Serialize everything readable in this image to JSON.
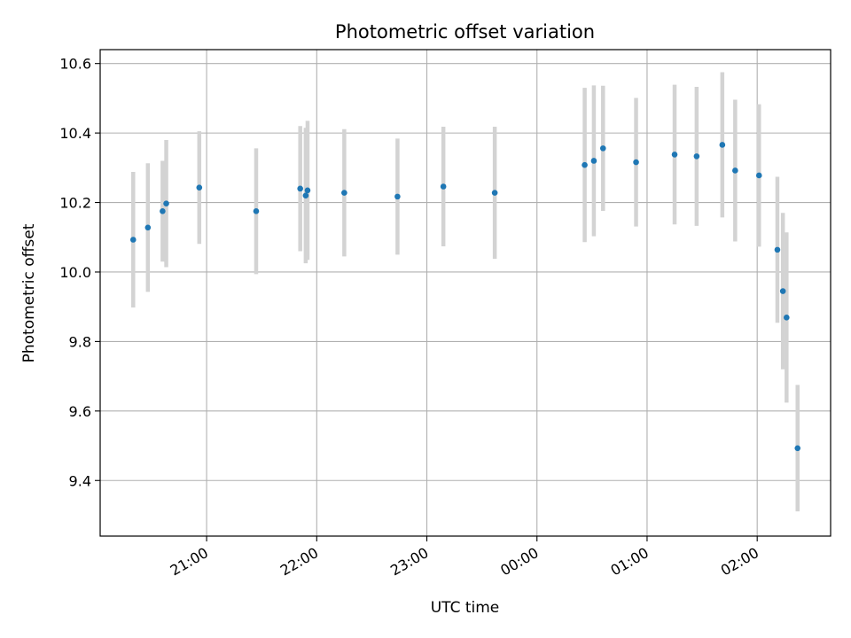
{
  "chart_data": {
    "type": "scatter",
    "title": "Photometric offset variation",
    "xlabel": "UTC time",
    "ylabel": "Photometric offset",
    "x_axis_type": "time",
    "xlim": [
      "20:02",
      "02:40"
    ],
    "ylim": [
      9.24,
      10.64
    ],
    "x_ticks": [
      {
        "label": "21:00",
        "t": "21:00"
      },
      {
        "label": "22:00",
        "t": "22:00"
      },
      {
        "label": "23:00",
        "t": "23:00"
      },
      {
        "label": "00:00",
        "t": "00:00"
      },
      {
        "label": "01:00",
        "t": "01:00"
      },
      {
        "label": "02:00",
        "t": "02:00"
      }
    ],
    "y_ticks": [
      {
        "label": "9.4",
        "v": 9.4
      },
      {
        "label": "9.6",
        "v": 9.6
      },
      {
        "label": "9.8",
        "v": 9.8
      },
      {
        "label": "10.0",
        "v": 10.0
      },
      {
        "label": "10.2",
        "v": 10.2
      },
      {
        "label": "10.4",
        "v": 10.4
      },
      {
        "label": "10.6",
        "v": 10.6
      }
    ],
    "grid": true,
    "legend": "none",
    "colors": {
      "points": "#1f77b4",
      "errorbars": "#d3d3d3"
    },
    "points": [
      {
        "t": "20:20",
        "y": 10.093,
        "err": 0.195
      },
      {
        "t": "20:28",
        "y": 10.128,
        "err": 0.185
      },
      {
        "t": "20:36",
        "y": 10.175,
        "err": 0.145
      },
      {
        "t": "20:38",
        "y": 10.197,
        "err": 0.183
      },
      {
        "t": "20:56",
        "y": 10.243,
        "err": 0.162
      },
      {
        "t": "21:27",
        "y": 10.175,
        "err": 0.181
      },
      {
        "t": "21:51",
        "y": 10.24,
        "err": 0.18
      },
      {
        "t": "21:54",
        "y": 10.22,
        "err": 0.195
      },
      {
        "t": "21:55",
        "y": 10.235,
        "err": 0.2
      },
      {
        "t": "22:15",
        "y": 10.228,
        "err": 0.183
      },
      {
        "t": "22:44",
        "y": 10.217,
        "err": 0.167
      },
      {
        "t": "23:09",
        "y": 10.246,
        "err": 0.172
      },
      {
        "t": "23:37",
        "y": 10.228,
        "err": 0.19
      },
      {
        "t": "00:26",
        "y": 10.308,
        "err": 0.222
      },
      {
        "t": "00:31",
        "y": 10.32,
        "err": 0.217
      },
      {
        "t": "00:36",
        "y": 10.356,
        "err": 0.18
      },
      {
        "t": "00:54",
        "y": 10.316,
        "err": 0.185
      },
      {
        "t": "01:15",
        "y": 10.338,
        "err": 0.201
      },
      {
        "t": "01:27",
        "y": 10.333,
        "err": 0.2
      },
      {
        "t": "01:41",
        "y": 10.366,
        "err": 0.209
      },
      {
        "t": "01:48",
        "y": 10.292,
        "err": 0.204
      },
      {
        "t": "02:01",
        "y": 10.278,
        "err": 0.205
      },
      {
        "t": "02:11",
        "y": 10.064,
        "err": 0.21
      },
      {
        "t": "02:14",
        "y": 9.945,
        "err": 0.225
      },
      {
        "t": "02:16",
        "y": 9.869,
        "err": 0.245
      },
      {
        "t": "02:22",
        "y": 9.493,
        "err": 0.182
      }
    ]
  }
}
